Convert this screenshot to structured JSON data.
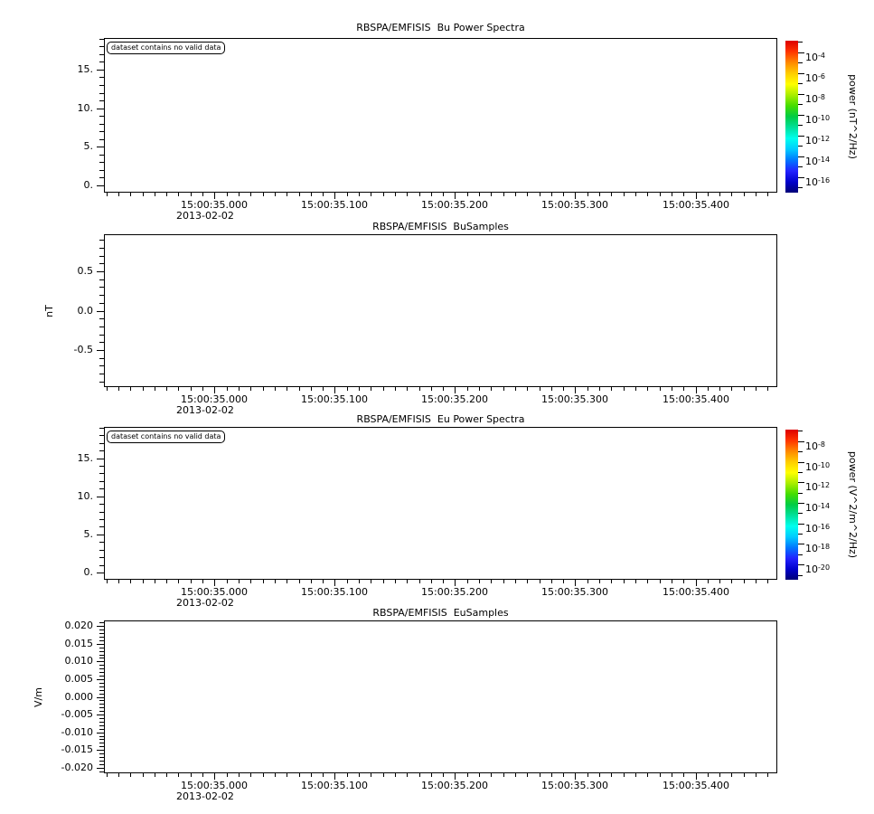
{
  "page": {
    "background": "#ffffff",
    "foreground": "#000000"
  },
  "colormap": [
    "#dd0000",
    "#ff3300",
    "#ff8800",
    "#ffcc00",
    "#ffff00",
    "#aaee00",
    "#44dd00",
    "#00cc44",
    "#00e09a",
    "#00ffee",
    "#00ccff",
    "#0077ff",
    "#2222ff",
    "#0000cc",
    "#000077"
  ],
  "chart_data": [
    {
      "type": "heatmap",
      "title": "RBSPA/EMFISIS  Bu Power Spectra",
      "annotation": "dataset contains no valid data",
      "values": [],
      "x_axis": {
        "lim": [
          34.908,
          35.468
        ],
        "minor_step": 0.01,
        "date": "2013-02-02",
        "major": [
          {
            "value": 35.0,
            "label": "15:00:35.000"
          },
          {
            "value": 35.1,
            "label": "15:00:35.100"
          },
          {
            "value": 35.2,
            "label": "15:00:35.200"
          },
          {
            "value": 35.3,
            "label": "15:00:35.300"
          },
          {
            "value": 35.4,
            "label": "15:00:35.400"
          }
        ]
      },
      "y_axis": {
        "lim": [
          -0.95,
          19.1
        ],
        "minor_step": 1,
        "unit": "",
        "ticks": [
          {
            "value": 15,
            "label": "15."
          },
          {
            "value": 10,
            "label": "10."
          },
          {
            "value": 5,
            "label": "5."
          },
          {
            "value": 0,
            "label": "0."
          }
        ]
      },
      "colorbar": {
        "label": "power (nT^2/Hz)",
        "log_top": -2.87,
        "log_bottom": -17.48,
        "major_ticks": [
          {
            "exp": -4,
            "mantissa": "10",
            "exponent": "-4"
          },
          {
            "exp": -6,
            "mantissa": "10",
            "exponent": "-6"
          },
          {
            "exp": -8,
            "mantissa": "10",
            "exponent": "-8"
          },
          {
            "exp": -10,
            "mantissa": "10",
            "exponent": "-10"
          },
          {
            "exp": -12,
            "mantissa": "10",
            "exponent": "-12"
          },
          {
            "exp": -14,
            "mantissa": "10",
            "exponent": "-14"
          },
          {
            "exp": -16,
            "mantissa": "10",
            "exponent": "-16"
          }
        ]
      }
    },
    {
      "type": "line",
      "title": "RBSPA/EMFISIS  BuSamples",
      "annotation": null,
      "values": [],
      "x_axis": {
        "lim": [
          34.908,
          35.468
        ],
        "minor_step": 0.01,
        "date": "2013-02-02",
        "major": [
          {
            "value": 35.0,
            "label": "15:00:35.000"
          },
          {
            "value": 35.1,
            "label": "15:00:35.100"
          },
          {
            "value": 35.2,
            "label": "15:00:35.200"
          },
          {
            "value": 35.3,
            "label": "15:00:35.300"
          },
          {
            "value": 35.4,
            "label": "15:00:35.400"
          }
        ]
      },
      "y_axis": {
        "lim": [
          -0.97,
          0.97
        ],
        "minor_step": 0.1,
        "unit": "nT",
        "ticks": [
          {
            "value": 0.5,
            "label": "0.5"
          },
          {
            "value": 0.0,
            "label": "0.0"
          },
          {
            "value": -0.5,
            "label": "-0.5"
          }
        ]
      },
      "colorbar": null
    },
    {
      "type": "heatmap",
      "title": "RBSPA/EMFISIS  Eu Power Spectra",
      "annotation": "dataset contains no valid data",
      "values": [],
      "x_axis": {
        "lim": [
          34.908,
          35.468
        ],
        "minor_step": 0.01,
        "date": "2013-02-02",
        "major": [
          {
            "value": 35.0,
            "label": "15:00:35.000"
          },
          {
            "value": 35.1,
            "label": "15:00:35.100"
          },
          {
            "value": 35.2,
            "label": "15:00:35.200"
          },
          {
            "value": 35.3,
            "label": "15:00:35.300"
          },
          {
            "value": 35.4,
            "label": "15:00:35.400"
          }
        ]
      },
      "y_axis": {
        "lim": [
          -0.95,
          19.1
        ],
        "minor_step": 1,
        "unit": "",
        "ticks": [
          {
            "value": 15,
            "label": "15."
          },
          {
            "value": 10,
            "label": "10."
          },
          {
            "value": 5,
            "label": "5."
          },
          {
            "value": 0,
            "label": "0."
          }
        ]
      },
      "colorbar": {
        "label": "power (V^2/m^2/Hz)",
        "log_top": -6.87,
        "log_bottom": -21.48,
        "major_ticks": [
          {
            "exp": -8,
            "mantissa": "10",
            "exponent": "-8"
          },
          {
            "exp": -10,
            "mantissa": "10",
            "exponent": "-10"
          },
          {
            "exp": -12,
            "mantissa": "10",
            "exponent": "-12"
          },
          {
            "exp": -14,
            "mantissa": "10",
            "exponent": "-14"
          },
          {
            "exp": -16,
            "mantissa": "10",
            "exponent": "-16"
          },
          {
            "exp": -18,
            "mantissa": "10",
            "exponent": "-18"
          },
          {
            "exp": -20,
            "mantissa": "10",
            "exponent": "-20"
          }
        ]
      }
    },
    {
      "type": "line",
      "title": "RBSPA/EMFISIS  EuSamples",
      "annotation": null,
      "values": [],
      "x_axis": {
        "lim": [
          34.908,
          35.468
        ],
        "minor_step": 0.01,
        "date": "2013-02-02",
        "major": [
          {
            "value": 35.0,
            "label": "15:00:35.000"
          },
          {
            "value": 35.1,
            "label": "15:00:35.100"
          },
          {
            "value": 35.2,
            "label": "15:00:35.200"
          },
          {
            "value": 35.3,
            "label": "15:00:35.300"
          },
          {
            "value": 35.4,
            "label": "15:00:35.400"
          }
        ]
      },
      "y_axis": {
        "lim": [
          -0.0216,
          0.0216
        ],
        "minor_step": 0.001,
        "unit": "V/m",
        "ticks": [
          {
            "value": 0.02,
            "label": "0.020"
          },
          {
            "value": 0.015,
            "label": "0.015"
          },
          {
            "value": 0.01,
            "label": "0.010"
          },
          {
            "value": 0.005,
            "label": "0.005"
          },
          {
            "value": 0.0,
            "label": "0.000"
          },
          {
            "value": -0.005,
            "label": "-0.005"
          },
          {
            "value": -0.01,
            "label": "-0.010"
          },
          {
            "value": -0.015,
            "label": "-0.015"
          },
          {
            "value": -0.02,
            "label": "-0.020"
          }
        ]
      },
      "colorbar": null
    }
  ]
}
